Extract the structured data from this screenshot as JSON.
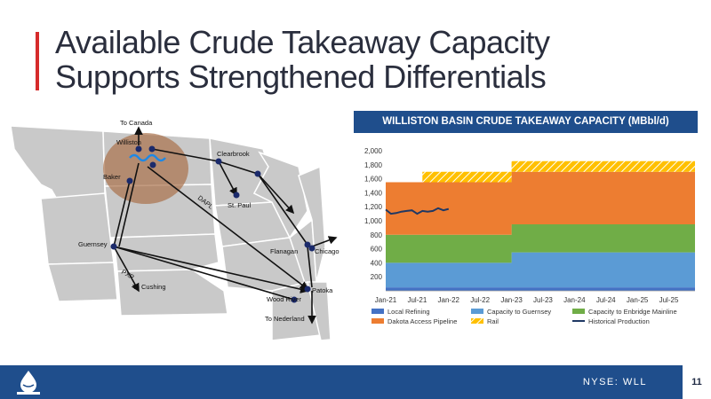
{
  "slide": {
    "title_line1": "Available Crude Takeaway Capacity",
    "title_line2": "Supports Strengthened Differentials",
    "page_number": "11",
    "ticker": "NYSE: WLL",
    "accent_color": "#d62b2b",
    "brand_color": "#1f4e8c",
    "logo": "whiting-drop-logo"
  },
  "map": {
    "labels": {
      "to_canada": "To Canada",
      "williston": "Williston",
      "clearbrook": "Clearbrook",
      "baker": "Baker",
      "st_paul": "St. Paul",
      "dapl": "DAPL",
      "guernsey": "Guernsey",
      "flanagan": "Flanagan",
      "chicago": "Chicago",
      "pxp": "PXP",
      "to_cushing": "To Cushing",
      "wood_river": "Wood River",
      "patoka": "Patoka",
      "to_nederland": "To Nederland"
    }
  },
  "chart_data": {
    "type": "area",
    "title": "WILLISTON BASIN CRUDE TAKEAWAY CAPACITY (MBbl/d)",
    "x_tick_labels": [
      "Jan-21",
      "Jul-21",
      "Jan-22",
      "Jul-22",
      "Jan-23",
      "Jul-23",
      "Jan-24",
      "Jul-24",
      "Jan-25",
      "Jul-25"
    ],
    "x_range": [
      "Jan-21",
      "Dec-25"
    ],
    "ylim": [
      0,
      2000
    ],
    "y_tick_labels": [
      "200",
      "400",
      "600",
      "800",
      "1,000",
      "1,200",
      "1,400",
      "1,600",
      "1,800",
      "2,000"
    ],
    "grid": false,
    "legend_position": "bottom",
    "stacked_segments": [
      {
        "start": "Jan-21",
        "end": "Aug-21",
        "values": [
          50,
          350,
          400,
          750,
          0
        ]
      },
      {
        "start": "Aug-21",
        "end": "Jan-23",
        "values": [
          50,
          350,
          400,
          750,
          150
        ]
      },
      {
        "start": "Jan-23",
        "end": "Dec-25",
        "values": [
          50,
          500,
          400,
          750,
          150
        ]
      }
    ],
    "series": [
      {
        "name": "Local Refining",
        "color": "#4472c4",
        "kind": "stack"
      },
      {
        "name": "Capacity to Guernsey",
        "color": "#5b9bd5",
        "kind": "stack"
      },
      {
        "name": "Capacity to Enbridge Mainline",
        "color": "#70ad47",
        "kind": "stack"
      },
      {
        "name": "Dakota Access Pipeline",
        "color": "#ed7d31",
        "kind": "stack"
      },
      {
        "name": "Rail",
        "color": "#ffc000",
        "kind": "stack-hatched"
      },
      {
        "name": "Historical Production",
        "color": "#1f3864",
        "kind": "line",
        "x": [
          "Jan-21",
          "Feb-21",
          "Mar-21",
          "Apr-21",
          "May-21",
          "Jun-21",
          "Jul-21",
          "Aug-21",
          "Sep-21",
          "Oct-21",
          "Nov-21",
          "Dec-21",
          "Jan-22"
        ],
        "values": [
          1160,
          1100,
          1110,
          1130,
          1140,
          1150,
          1100,
          1140,
          1130,
          1140,
          1180,
          1150,
          1170
        ]
      }
    ]
  }
}
